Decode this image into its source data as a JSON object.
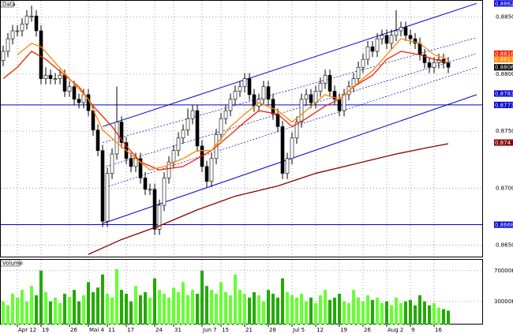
{
  "chart_data": {
    "type": "candlestick",
    "price_panel_label": "Data",
    "volume_panel_label": "Volume",
    "categories": [
      null,
      null,
      null,
      "Apr 12",
      null,
      null,
      null,
      null,
      "19",
      null,
      null,
      null,
      null,
      null,
      "26",
      null,
      null,
      null,
      "Mai 4",
      null,
      null,
      null,
      "11",
      null,
      null,
      null,
      "17",
      null,
      null,
      null,
      null,
      null,
      "24",
      null,
      null,
      null,
      "31",
      null,
      null,
      null,
      null,
      null,
      "Jun 7",
      null,
      null,
      null,
      "15",
      null,
      null,
      null,
      null,
      "21",
      null,
      null,
      null,
      null,
      "28",
      null,
      null,
      null,
      null,
      "Jul 5",
      null,
      null,
      null,
      null,
      "12",
      null,
      null,
      null,
      null,
      "19",
      null,
      null,
      null,
      null,
      "26",
      null,
      null,
      null,
      null,
      "Aug 2",
      null,
      null,
      null,
      null,
      "9",
      null,
      null,
      null,
      null,
      "16",
      null,
      null,
      null
    ],
    "open": [
      0.8812,
      0.882,
      0.8831,
      0.8838,
      0.8838,
      0.8844,
      0.8851,
      0.8851,
      0.8838,
      0.8796,
      0.8799,
      0.8796,
      0.8796,
      0.8799,
      0.8785,
      0.8789,
      0.8778,
      0.8775,
      0.8782,
      0.8768,
      0.8751,
      0.8733,
      0.8671,
      0.8713,
      0.873,
      0.8758,
      0.874,
      0.8726,
      0.8719,
      0.8726,
      0.8709,
      0.8699,
      0.8699,
      0.8664,
      0.8685,
      0.8709,
      0.8723,
      0.8733,
      0.8744,
      0.8751,
      0.8761,
      0.8768,
      0.8737,
      0.8719,
      0.8706,
      0.8726,
      0.8747,
      0.8761,
      0.8768,
      0.8778,
      0.8785,
      0.8789,
      0.8796,
      0.8782,
      0.8772,
      0.8778,
      0.8789,
      0.8778,
      0.8765,
      0.8754,
      0.8713,
      0.8726,
      0.8744,
      0.8758,
      0.8778,
      0.8782,
      0.8775,
      0.8785,
      0.8792,
      0.8799,
      0.8785,
      0.8778,
      0.8768,
      0.8782,
      0.8789,
      0.8796,
      0.8806,
      0.8813,
      0.8824,
      0.882,
      0.8831,
      0.8834,
      0.8827,
      0.8834,
      0.8838,
      0.8841,
      0.8834,
      0.8831,
      0.8827,
      0.8817,
      0.881,
      0.8806,
      0.881,
      0.8813,
      0.881
    ],
    "high": [
      0.8825,
      0.8836,
      0.8843,
      0.8843,
      0.8849,
      0.8856,
      0.886,
      0.8856,
      0.8843,
      0.8806,
      0.8804,
      0.8801,
      0.8804,
      0.8804,
      0.8794,
      0.8794,
      0.8783,
      0.8787,
      0.8787,
      0.8773,
      0.8756,
      0.8738,
      0.8718,
      0.8735,
      0.8789,
      0.8763,
      0.8745,
      0.8731,
      0.8731,
      0.8731,
      0.8714,
      0.8704,
      0.8704,
      0.869,
      0.8714,
      0.8728,
      0.8738,
      0.8749,
      0.8756,
      0.877,
      0.8773,
      0.8773,
      0.8742,
      0.8724,
      0.8731,
      0.8752,
      0.8766,
      0.8773,
      0.8783,
      0.879,
      0.8794,
      0.8801,
      0.8801,
      0.8787,
      0.8783,
      0.8794,
      0.8794,
      0.8783,
      0.877,
      0.8759,
      0.8731,
      0.8749,
      0.8763,
      0.8783,
      0.8787,
      0.8787,
      0.879,
      0.8797,
      0.8804,
      0.8804,
      0.879,
      0.8783,
      0.8787,
      0.8794,
      0.8801,
      0.8811,
      0.8818,
      0.8829,
      0.8829,
      0.8836,
      0.8839,
      0.8839,
      0.8839,
      0.8856,
      0.8846,
      0.8846,
      0.8839,
      0.8836,
      0.8832,
      0.8822,
      0.8815,
      0.8815,
      0.8818,
      0.8818,
      0.8815
    ],
    "low": [
      0.8807,
      0.8815,
      0.8826,
      0.8833,
      0.8833,
      0.8839,
      0.8846,
      0.8833,
      0.8791,
      0.8791,
      0.8791,
      0.8791,
      0.8791,
      0.878,
      0.878,
      0.8773,
      0.877,
      0.877,
      0.8763,
      0.8746,
      0.8728,
      0.8666,
      0.8666,
      0.8708,
      0.8725,
      0.8735,
      0.8721,
      0.8714,
      0.8714,
      0.8704,
      0.8694,
      0.8694,
      0.8659,
      0.8659,
      0.868,
      0.8704,
      0.8718,
      0.8728,
      0.8739,
      0.8746,
      0.8756,
      0.8732,
      0.8714,
      0.8701,
      0.8701,
      0.8721,
      0.8742,
      0.8756,
      0.8763,
      0.8773,
      0.878,
      0.8784,
      0.8777,
      0.8767,
      0.8767,
      0.8773,
      0.8773,
      0.876,
      0.8749,
      0.8708,
      0.8708,
      0.8721,
      0.8739,
      0.8753,
      0.8773,
      0.877,
      0.877,
      0.878,
      0.8787,
      0.878,
      0.8773,
      0.8763,
      0.8763,
      0.8777,
      0.8784,
      0.8791,
      0.8801,
      0.8808,
      0.8815,
      0.8815,
      0.8826,
      0.8822,
      0.8822,
      0.8829,
      0.8833,
      0.8829,
      0.8826,
      0.8822,
      0.8812,
      0.8805,
      0.8801,
      0.8801,
      0.8805,
      0.8805,
      0.8801
    ],
    "close": [
      0.882,
      0.8831,
      0.8838,
      0.8838,
      0.8844,
      0.8851,
      0.8851,
      0.8838,
      0.8796,
      0.8799,
      0.8796,
      0.8796,
      0.8799,
      0.8785,
      0.8789,
      0.8778,
      0.8775,
      0.8782,
      0.8768,
      0.8751,
      0.8733,
      0.8671,
      0.8713,
      0.873,
      0.8758,
      0.874,
      0.8726,
      0.8719,
      0.8726,
      0.8709,
      0.8699,
      0.8699,
      0.8664,
      0.8685,
      0.8709,
      0.8723,
      0.8733,
      0.8744,
      0.8751,
      0.8761,
      0.8768,
      0.8737,
      0.8719,
      0.8706,
      0.8726,
      0.8747,
      0.8761,
      0.8768,
      0.8778,
      0.8785,
      0.8789,
      0.8796,
      0.8782,
      0.8772,
      0.8778,
      0.8789,
      0.8778,
      0.8765,
      0.8754,
      0.8713,
      0.8726,
      0.8744,
      0.8758,
      0.8778,
      0.8782,
      0.8775,
      0.8785,
      0.8792,
      0.8799,
      0.8785,
      0.8778,
      0.8768,
      0.8782,
      0.8789,
      0.8796,
      0.8806,
      0.8813,
      0.8824,
      0.882,
      0.8831,
      0.8834,
      0.8827,
      0.8834,
      0.8838,
      0.8841,
      0.8834,
      0.8831,
      0.8827,
      0.8817,
      0.881,
      0.8806,
      0.881,
      0.8813,
      0.881,
      0.8806
    ],
    "volume": [
      30000,
      25000,
      40000,
      35000,
      45000,
      30000,
      50000,
      38000,
      70000,
      42000,
      30000,
      35000,
      28000,
      40000,
      36000,
      45000,
      30000,
      38000,
      55000,
      42000,
      48000,
      65000,
      40000,
      35000,
      72000,
      45000,
      40000,
      30000,
      50000,
      38000,
      42000,
      35000,
      60000,
      45000,
      40000,
      35000,
      48000,
      42000,
      55000,
      38000,
      45000,
      40000,
      70000,
      50000,
      45000,
      40000,
      55000,
      42000,
      38000,
      65000,
      45000,
      40000,
      35000,
      42000,
      38000,
      30000,
      45000,
      40000,
      35000,
      60000,
      42000,
      38000,
      35000,
      40000,
      30000,
      35000,
      28000,
      38000,
      45000,
      32000,
      35000,
      40000,
      30000,
      28000,
      45000,
      35000,
      30000,
      38000,
      32000,
      35000,
      28000,
      30000,
      25000,
      35000,
      28000,
      30000,
      32000,
      25000,
      38000,
      30000,
      25000,
      28000,
      22000,
      20000,
      18000
    ],
    "up_color": "#ffffff",
    "down_color": "#000000",
    "volume_up_color": "#66ff33",
    "volume_down_color": "#22aa00",
    "ylim": [
      0.864,
      0.8865
    ],
    "yticks": [
      {
        "value": 0.885,
        "label": "0.8850"
      },
      {
        "value": 0.88,
        "label": "0.8800"
      },
      {
        "value": 0.875,
        "label": "0.8750"
      },
      {
        "value": 0.87,
        "label": "0.8700"
      },
      {
        "value": 0.865,
        "label": "0.8650"
      }
    ],
    "volume_ylim": [
      0,
      80000
    ],
    "volume_yticks": [
      {
        "value": 70000,
        "label": "70000K"
      },
      {
        "value": 30000,
        "label": "30000K"
      }
    ],
    "grid": true,
    "overlays": [
      {
        "color": "#ee2200",
        "x": [
          0,
          3,
          6,
          9,
          13,
          16,
          19,
          23,
          26,
          29,
          33,
          38,
          41,
          44,
          48,
          51,
          54,
          58,
          61,
          64,
          68,
          71,
          74,
          78,
          81,
          84,
          88,
          91,
          94
        ],
        "values": [
          0.8796,
          0.8806,
          0.882,
          0.8813,
          0.8799,
          0.8789,
          0.8772,
          0.8754,
          0.8737,
          0.8723,
          0.8716,
          0.8719,
          0.8726,
          0.8733,
          0.8747,
          0.8758,
          0.8768,
          0.8765,
          0.8754,
          0.8761,
          0.8772,
          0.8778,
          0.8789,
          0.8799,
          0.8813,
          0.882,
          0.8817,
          0.8813,
          0.881
        ]
      },
      {
        "color": "#ff8800",
        "x": [
          3,
          6,
          8,
          11,
          14,
          18,
          21,
          24,
          28,
          31,
          34,
          38,
          41,
          44,
          48,
          51,
          54,
          58,
          61,
          64,
          68,
          71,
          74,
          78,
          81,
          84,
          88,
          91,
          94
        ],
        "values": [
          0.8817,
          0.8827,
          0.8824,
          0.881,
          0.8796,
          0.8778,
          0.8751,
          0.874,
          0.8726,
          0.8716,
          0.8719,
          0.8726,
          0.8733,
          0.8733,
          0.8754,
          0.8765,
          0.8775,
          0.8768,
          0.8758,
          0.8768,
          0.8782,
          0.8778,
          0.8789,
          0.8803,
          0.8817,
          0.8831,
          0.8827,
          0.8817,
          0.8813
        ]
      },
      {
        "color": "#880000",
        "x": [
          18,
          25,
          33,
          41,
          49,
          58,
          66,
          74,
          83,
          89,
          94
        ],
        "values": [
          0.8642,
          0.8655,
          0.8667,
          0.8681,
          0.8693,
          0.8702,
          0.8713,
          0.8721,
          0.873,
          0.8735,
          0.8739
        ]
      }
    ],
    "channel_lines": [
      {
        "color": "#0000cc",
        "dashed": false,
        "x": [
          21,
          100
        ],
        "values": [
          0.8754,
          0.8862
        ]
      },
      {
        "color": "#0000cc",
        "dashed": false,
        "x": [
          21,
          100
        ],
        "values": [
          0.8669,
          0.8782
        ]
      },
      {
        "color": "#0000cc",
        "dashed": true,
        "x": [
          21,
          100
        ],
        "values": [
          0.874,
          0.8832
        ]
      },
      {
        "color": "#0000cc",
        "dashed": true,
        "x": [
          21,
          100
        ],
        "values": [
          0.8718,
          0.8818
        ]
      },
      {
        "color": "#0000cc",
        "dashed": true,
        "x": [
          21,
          100
        ],
        "values": [
          0.87,
          0.8806
        ]
      }
    ],
    "hlines": {
      "color": "#0000cc",
      "values": [
        0.8773,
        0.8668
      ]
    },
    "price_labels": {
      "values": [
        0.8862,
        0.8818,
        0.8813,
        0.8806,
        0.8783,
        0.8773,
        0.874,
        0.8668
      ],
      "colors": [
        "#0000cc",
        "#ee2200",
        "#ff8800",
        "#000000",
        "#0000cc",
        "#0000cc",
        "#880000",
        "#0000cc"
      ]
    }
  }
}
